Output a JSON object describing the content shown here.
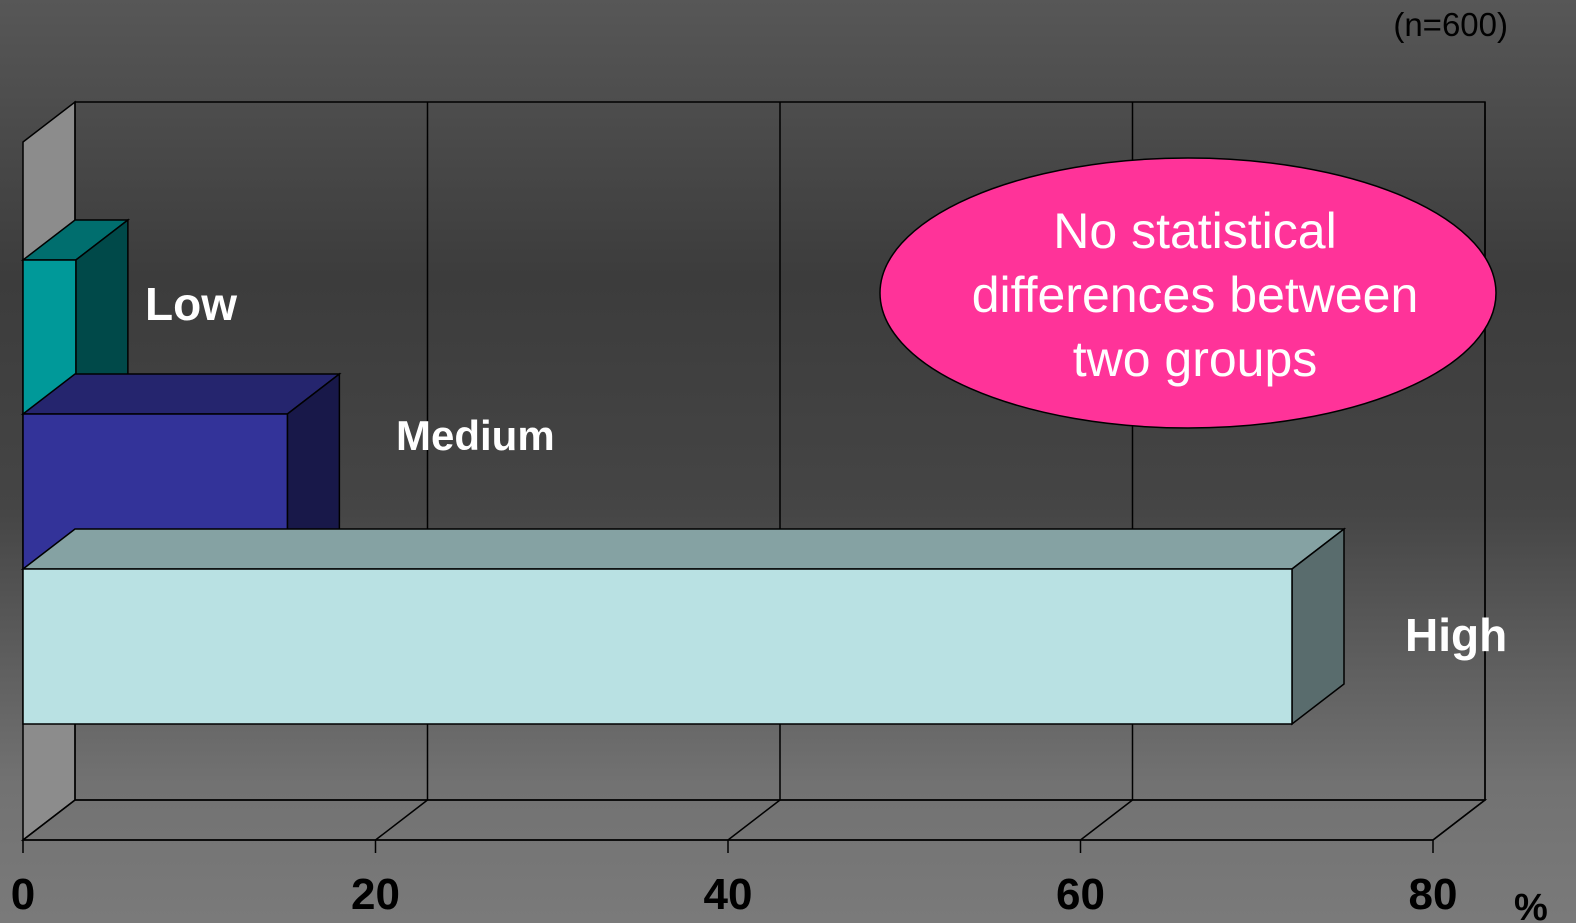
{
  "sample_note": "(n=600)",
  "annotation": {
    "lines": [
      "No statistical",
      "differences between",
      "two groups"
    ],
    "fill": "#ff3399"
  },
  "chart_data": {
    "type": "bar",
    "orientation": "horizontal",
    "style": "3d",
    "categories": [
      "Low",
      "Medium",
      "High"
    ],
    "values": [
      3,
      15,
      72
    ],
    "colors": [
      "#009999",
      "#333399",
      "#b9e1e3"
    ],
    "xlim": [
      0,
      80
    ],
    "xticks": [
      0,
      20,
      40,
      60,
      80
    ],
    "x_unit": "%",
    "grid": true,
    "legend": "none"
  }
}
